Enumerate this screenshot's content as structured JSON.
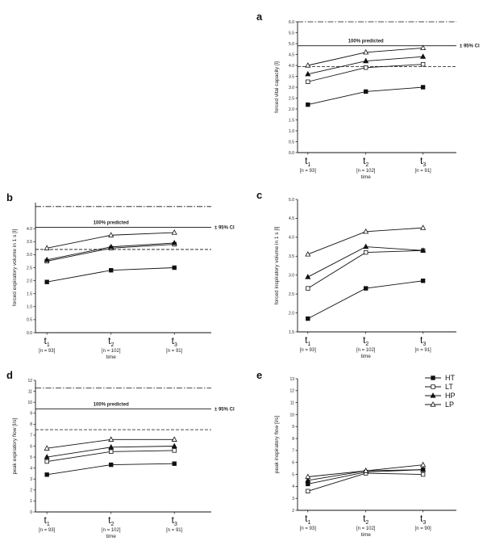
{
  "legend": {
    "items": [
      {
        "label": "HT",
        "marker": "square-filled"
      },
      {
        "label": "LT",
        "marker": "square-open"
      },
      {
        "label": "HP",
        "marker": "triangle-filled"
      },
      {
        "label": "LP",
        "marker": "triangle-open"
      }
    ]
  },
  "chart_data": [
    {
      "panel": "a",
      "type": "line",
      "xlabel": "time",
      "ylabel": "forced vital capacity [l]",
      "ylim": [
        0,
        6
      ],
      "yticks": [
        "0.0",
        "0.5",
        "1.0",
        "1.5",
        "2.0",
        "2.5",
        "3.0",
        "3.5",
        "4.0",
        "4.5",
        "5.0",
        "5.5",
        "6.0"
      ],
      "categories": [
        {
          "main": "t",
          "sub": "1",
          "n": "[n = 93]"
        },
        {
          "main": "t",
          "sub": "2",
          "n": "[n = 102]"
        },
        {
          "main": "t",
          "sub": "3",
          "n": "[n = 91]"
        }
      ],
      "reference_lines": {
        "predicted": 4.9,
        "ci_upper": 6.0,
        "ci_lower": 3.95
      },
      "annotations": [
        {
          "text": "100% predicted"
        },
        {
          "text": "± 95% CI"
        }
      ],
      "series": [
        {
          "name": "HT",
          "values": [
            2.2,
            2.8,
            3.0
          ]
        },
        {
          "name": "LT",
          "values": [
            3.25,
            3.9,
            4.05
          ]
        },
        {
          "name": "HP",
          "values": [
            3.6,
            4.2,
            4.4
          ]
        },
        {
          "name": "LP",
          "values": [
            4.0,
            4.6,
            4.8
          ]
        }
      ]
    },
    {
      "panel": "b",
      "type": "line",
      "xlabel": "time",
      "ylabel": "forced expiratory volume in 1 s [l]",
      "ylim": [
        0,
        5
      ],
      "yticks": [
        "0.0",
        "0.5",
        "1.0",
        "1.5",
        "2.0",
        "2.5",
        "3.0",
        "3.5",
        "4.0"
      ],
      "categories": [
        {
          "main": "t",
          "sub": "1",
          "n": "[n = 93]"
        },
        {
          "main": "t",
          "sub": "2",
          "n": "[n = 102]"
        },
        {
          "main": "t",
          "sub": "3",
          "n": "[n = 91]"
        }
      ],
      "reference_lines": {
        "predicted": 4.05,
        "ci_upper": 4.85,
        "ci_lower": 3.2
      },
      "annotations": [
        {
          "text": "100% predicted"
        },
        {
          "text": "± 95% CI"
        }
      ],
      "series": [
        {
          "name": "HT",
          "values": [
            1.95,
            2.4,
            2.5
          ]
        },
        {
          "name": "LT",
          "values": [
            2.75,
            3.25,
            3.4
          ]
        },
        {
          "name": "HP",
          "values": [
            2.8,
            3.3,
            3.45
          ]
        },
        {
          "name": "LP",
          "values": [
            3.25,
            3.75,
            3.85
          ]
        }
      ]
    },
    {
      "panel": "c",
      "type": "line",
      "xlabel": "time",
      "ylabel": "forced inspiratory volume in 1 s [l]",
      "ylim": [
        1.5,
        5
      ],
      "yticks": [
        "1.5",
        "2.0",
        "2.5",
        "3.0",
        "3.5",
        "4.0",
        "4.5",
        "5.0"
      ],
      "categories": [
        {
          "main": "t",
          "sub": "1",
          "n": "[n = 93]"
        },
        {
          "main": "t",
          "sub": "2",
          "n": "[n = 102]"
        },
        {
          "main": "t",
          "sub": "3",
          "n": "[n = 91]"
        }
      ],
      "series": [
        {
          "name": "HT",
          "values": [
            1.85,
            2.65,
            2.85
          ]
        },
        {
          "name": "LT",
          "values": [
            2.65,
            3.6,
            3.65
          ]
        },
        {
          "name": "HP",
          "values": [
            2.95,
            3.75,
            3.65
          ]
        },
        {
          "name": "LP",
          "values": [
            3.55,
            4.15,
            4.25
          ]
        }
      ]
    },
    {
      "panel": "d",
      "type": "line",
      "xlabel": "time",
      "ylabel": "peak expiratory flow [l/s]",
      "ylim": [
        0,
        12
      ],
      "yticks": [
        "0",
        "1",
        "2",
        "3",
        "4",
        "5",
        "6",
        "7",
        "8",
        "9",
        "10",
        "11",
        "12"
      ],
      "categories": [
        {
          "main": "t",
          "sub": "1",
          "n": "[n = 93]"
        },
        {
          "main": "t",
          "sub": "2",
          "n": "[n = 102]"
        },
        {
          "main": "t",
          "sub": "3",
          "n": "[n = 91]"
        }
      ],
      "reference_lines": {
        "predicted": 9.4,
        "ci_upper": 11.3,
        "ci_lower": 7.5
      },
      "annotations": [
        {
          "text": "100% predicted"
        },
        {
          "text": "± 95% CI"
        }
      ],
      "series": [
        {
          "name": "HT",
          "values": [
            3.4,
            4.3,
            4.4
          ]
        },
        {
          "name": "LT",
          "values": [
            4.6,
            5.5,
            5.6
          ]
        },
        {
          "name": "HP",
          "values": [
            5.0,
            5.9,
            6.0
          ]
        },
        {
          "name": "LP",
          "values": [
            5.8,
            6.6,
            6.6
          ]
        }
      ]
    },
    {
      "panel": "e",
      "type": "line",
      "xlabel": "time",
      "ylabel": "peak inspiratory flow [l/s]",
      "ylim": [
        2,
        13
      ],
      "yticks": [
        "2",
        "3",
        "4",
        "5",
        "6",
        "7",
        "8",
        "9",
        "10",
        "11",
        "12",
        "13"
      ],
      "categories": [
        {
          "main": "t",
          "sub": "1",
          "n": "[n = 93]"
        },
        {
          "main": "t",
          "sub": "2",
          "n": "[n = 102]"
        },
        {
          "main": "t",
          "sub": "3",
          "n": "[n = 90]"
        }
      ],
      "series": [
        {
          "name": "HT",
          "values": [
            4.2,
            5.2,
            5.4
          ]
        },
        {
          "name": "LT",
          "values": [
            3.6,
            5.1,
            5.0
          ]
        },
        {
          "name": "HP",
          "values": [
            4.5,
            5.3,
            5.4
          ]
        },
        {
          "name": "LP",
          "values": [
            4.8,
            5.3,
            5.8
          ]
        }
      ]
    }
  ]
}
